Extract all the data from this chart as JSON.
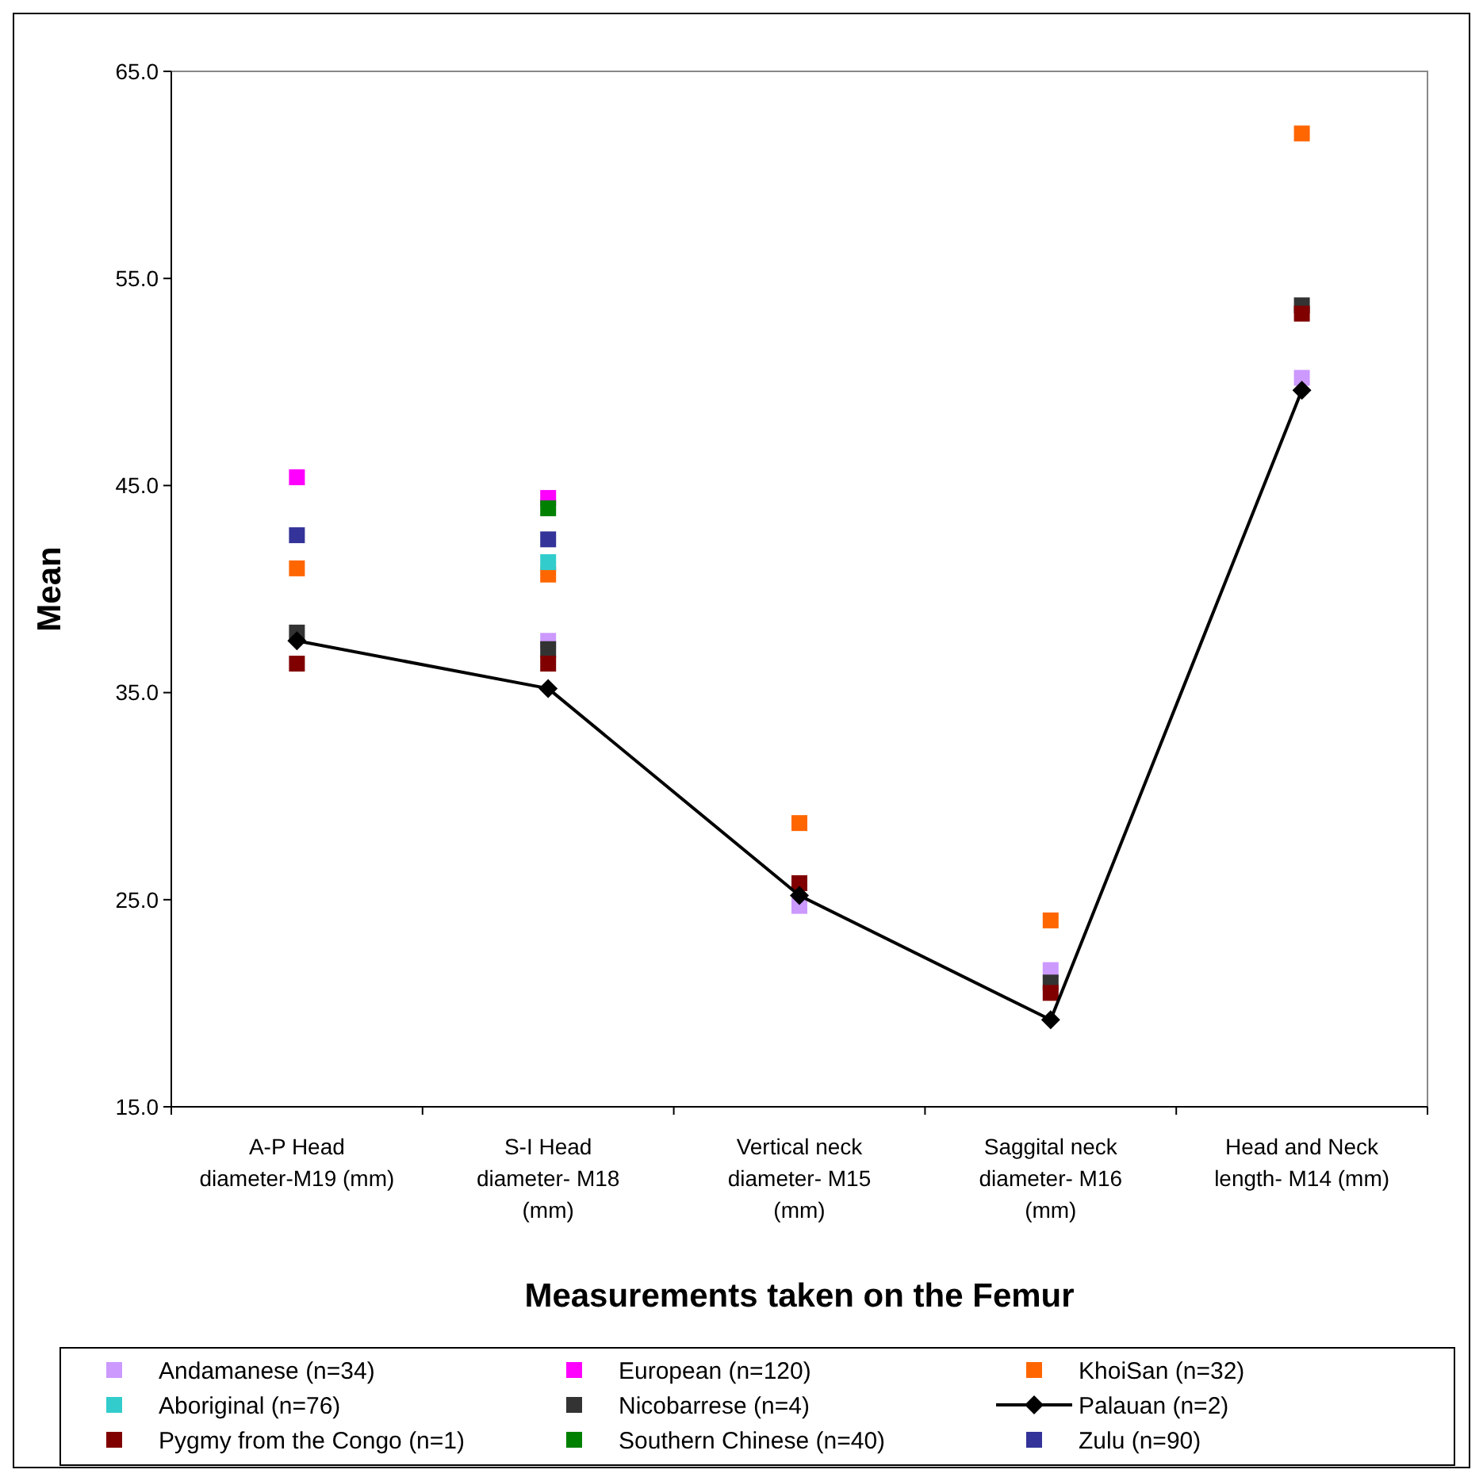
{
  "chart_data": {
    "type": "scatter",
    "xlabel": "Measurements taken on the Femur",
    "ylabel": "Mean",
    "categories": [
      "A-P Head diameter-M19 (mm)",
      "S-I Head diameter- M18 (mm)",
      "Vertical neck diameter- M15 (mm)",
      "Saggital neck diameter- M16 (mm)",
      "Head and Neck length- M14 (mm)"
    ],
    "ylim": [
      15,
      65
    ],
    "yticks": [
      {
        "value": 15,
        "label": "15.0"
      },
      {
        "value": 25,
        "label": "25.0"
      },
      {
        "value": 35,
        "label": "35.0"
      },
      {
        "value": 45,
        "label": "45.0"
      },
      {
        "value": 55,
        "label": "55.0"
      },
      {
        "value": 65,
        "label": "65.0"
      }
    ],
    "grid": false,
    "legend": "bottom",
    "marker": "square",
    "series": [
      {
        "name": "Andamanese (n=34)",
        "color": "#cc99ff",
        "values": [
          null,
          37.5,
          24.7,
          21.6,
          50.2
        ]
      },
      {
        "name": "European (n=120)",
        "color": "#ff00ff",
        "values": [
          45.4,
          44.4,
          null,
          null,
          null
        ]
      },
      {
        "name": "KhoiSan (n=32)",
        "color": "#ff6600",
        "values": [
          41.0,
          40.7,
          28.7,
          24.0,
          62.0
        ]
      },
      {
        "name": "Aboriginal (n=76)",
        "color": "#33cccc",
        "values": [
          null,
          41.3,
          null,
          null,
          null
        ]
      },
      {
        "name": "Nicobarrese (n=4)",
        "color": "#333333",
        "values": [
          37.9,
          37.1,
          null,
          21.0,
          53.7
        ]
      },
      {
        "name": "Palauan (n=2)",
        "color": "#000000",
        "type": "line",
        "marker": "diamond",
        "values": [
          37.5,
          35.2,
          25.2,
          19.2,
          49.6
        ]
      },
      {
        "name": "Pygmy from the Congo (n=1)",
        "color": "#800000",
        "values": [
          36.4,
          36.4,
          25.8,
          20.5,
          53.3
        ]
      },
      {
        "name": "Southern Chinese (n=40)",
        "color": "#008000",
        "values": [
          null,
          43.9,
          null,
          null,
          null
        ]
      },
      {
        "name": "Zulu (n=90)",
        "color": "#333399",
        "values": [
          42.6,
          42.4,
          null,
          null,
          null
        ]
      }
    ]
  }
}
